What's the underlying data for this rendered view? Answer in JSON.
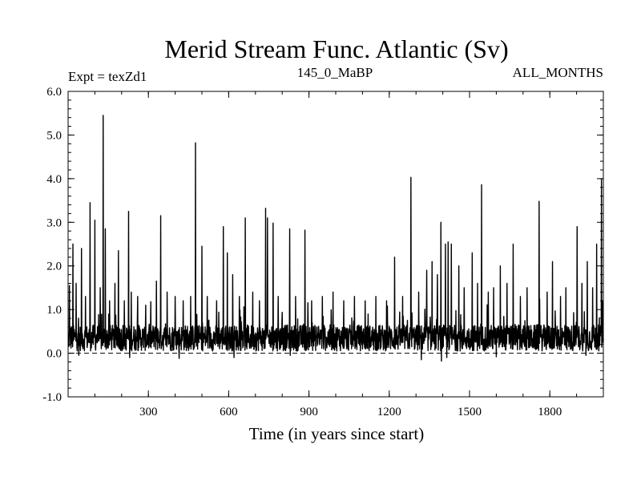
{
  "chart_data": {
    "type": "line",
    "title": "Merid Stream Func. Atlantic (Sv)",
    "header_left": "Expt = texZd1",
    "header_center": "145_0_MaBP",
    "header_right": "ALL_MONTHS",
    "xlabel": "Time (in years since start)",
    "ylabel": "",
    "xlim": [
      0,
      2000
    ],
    "ylim": [
      -1.0,
      6.0
    ],
    "xticks": [
      300,
      600,
      900,
      1200,
      1500,
      1800
    ],
    "yticks": [
      -1.0,
      0.0,
      1.0,
      2.0,
      3.0,
      4.0,
      5.0,
      6.0
    ],
    "ytick_labels": [
      "-1.0",
      "0.0",
      "1.0",
      "2.0",
      "3.0",
      "4.0",
      "5.0",
      "6.0"
    ],
    "reference_line": 0.0,
    "grid": false,
    "series": [
      {
        "values_note": "",
        "baseline_mean": 0.35,
        "baseline_spread": 0.3,
        "spikes": [
          [
            5,
            1.55
          ],
          [
            18,
            2.5
          ],
          [
            30,
            1.6
          ],
          [
            50,
            2.4
          ],
          [
            65,
            1.3
          ],
          [
            82,
            3.45
          ],
          [
            100,
            3.05
          ],
          [
            120,
            1.5
          ],
          [
            131,
            5.45
          ],
          [
            139,
            2.85
          ],
          [
            155,
            1.2
          ],
          [
            175,
            1.6
          ],
          [
            188,
            2.35
          ],
          [
            210,
            1.2
          ],
          [
            226,
            3.25
          ],
          [
            236,
            1.4
          ],
          [
            260,
            1.3
          ],
          [
            290,
            1.1
          ],
          [
            330,
            1.65
          ],
          [
            346,
            3.15
          ],
          [
            370,
            1.4
          ],
          [
            400,
            1.3
          ],
          [
            430,
            1.2
          ],
          [
            458,
            1.3
          ],
          [
            476,
            4.82
          ],
          [
            500,
            2.45
          ],
          [
            520,
            1.3
          ],
          [
            555,
            1.2
          ],
          [
            580,
            2.9
          ],
          [
            595,
            2.3
          ],
          [
            615,
            1.8
          ],
          [
            640,
            1.3
          ],
          [
            662,
            3.1
          ],
          [
            690,
            1.4
          ],
          [
            715,
            1.2
          ],
          [
            738,
            3.32
          ],
          [
            745,
            3.1
          ],
          [
            766,
            2.98
          ],
          [
            785,
            1.3
          ],
          [
            828,
            2.85
          ],
          [
            850,
            1.3
          ],
          [
            885,
            2.82
          ],
          [
            910,
            1.2
          ],
          [
            950,
            1.3
          ],
          [
            990,
            1.4
          ],
          [
            1030,
            1.2
          ],
          [
            1070,
            1.3
          ],
          [
            1110,
            1.2
          ],
          [
            1150,
            1.3
          ],
          [
            1190,
            1.2
          ],
          [
            1220,
            2.2
          ],
          [
            1250,
            1.3
          ],
          [
            1281,
            4.03
          ],
          [
            1310,
            1.4
          ],
          [
            1340,
            1.9
          ],
          [
            1360,
            2.1
          ],
          [
            1380,
            1.8
          ],
          [
            1393,
            3.0
          ],
          [
            1410,
            2.5
          ],
          [
            1420,
            2.55
          ],
          [
            1432,
            2.5
          ],
          [
            1460,
            2.0
          ],
          [
            1480,
            1.5
          ],
          [
            1510,
            2.3
          ],
          [
            1530,
            1.6
          ],
          [
            1545,
            3.86
          ],
          [
            1570,
            1.4
          ],
          [
            1590,
            1.5
          ],
          [
            1615,
            2.0
          ],
          [
            1640,
            1.6
          ],
          [
            1663,
            2.5
          ],
          [
            1690,
            1.3
          ],
          [
            1715,
            1.5
          ],
          [
            1760,
            3.48
          ],
          [
            1790,
            1.4
          ],
          [
            1810,
            2.1
          ],
          [
            1840,
            1.3
          ],
          [
            1860,
            1.5
          ],
          [
            1902,
            2.9
          ],
          [
            1920,
            1.6
          ],
          [
            1940,
            2.1
          ],
          [
            1960,
            1.5
          ],
          [
            1975,
            2.5
          ],
          [
            1993,
            3.98
          ],
          [
            1998,
            1.2
          ]
        ],
        "dips": [
          [
            40,
            -0.05
          ],
          [
            230,
            -0.1
          ],
          [
            415,
            -0.12
          ],
          [
            620,
            -0.1
          ],
          [
            830,
            -0.05
          ],
          [
            1320,
            -0.15
          ],
          [
            1395,
            -0.18
          ],
          [
            1415,
            -0.1
          ],
          [
            1600,
            -0.08
          ],
          [
            1860,
            -0.12
          ],
          [
            1935,
            -0.05
          ]
        ]
      }
    ]
  }
}
